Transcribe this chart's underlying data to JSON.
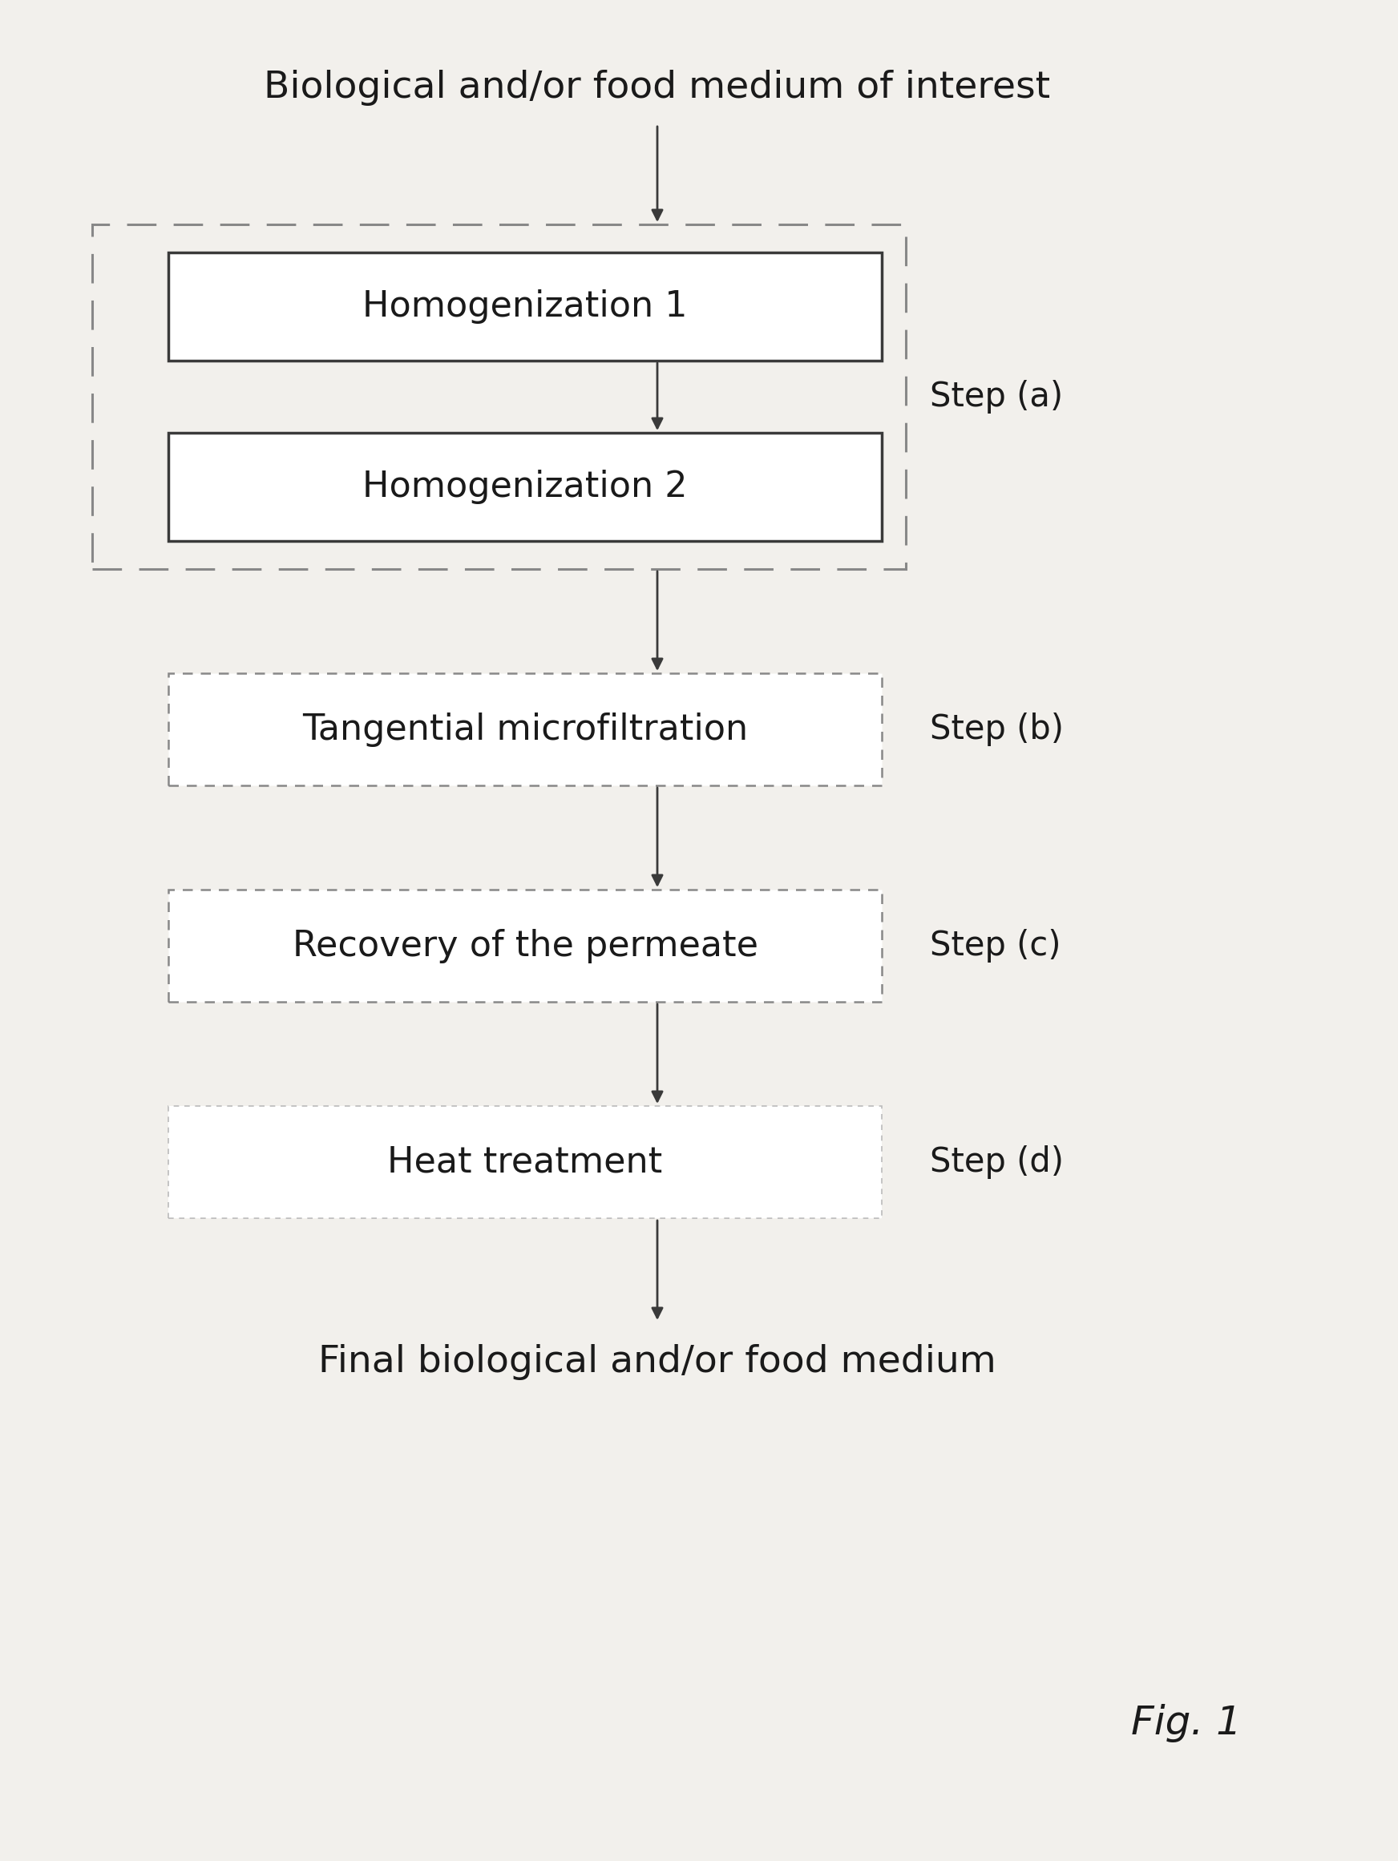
{
  "background_color": "#f2f0ec",
  "title_top": "Biological and/or food medium of interest",
  "title_bottom": "Final biological and/or food medium",
  "fig_label": "Fig. 1",
  "steps": [
    {
      "label": "Homogenization 1",
      "step_label": ""
    },
    {
      "label": "Homogenization 2",
      "step_label": ""
    },
    {
      "label": "Tangential microfiltration",
      "step_label": "Step (b)"
    },
    {
      "label": "Recovery of the permeate",
      "step_label": "Step (c)"
    },
    {
      "label": "Heat treatment",
      "step_label": "Step (d)"
    }
  ],
  "group_a_label": "Step (a)",
  "text_color": "#1a1a1a",
  "step_label_color": "#1a1a1a",
  "font_size_box": 32,
  "font_size_title": 34,
  "font_size_step": 30,
  "font_size_fig": 36,
  "box_edge_solid": "#3a3a3a",
  "box_edge_dotted": "#888888",
  "box_edge_heat": "#bbbbbb",
  "group_dash_color": "#888888",
  "arrow_color": "#3a3a3a"
}
